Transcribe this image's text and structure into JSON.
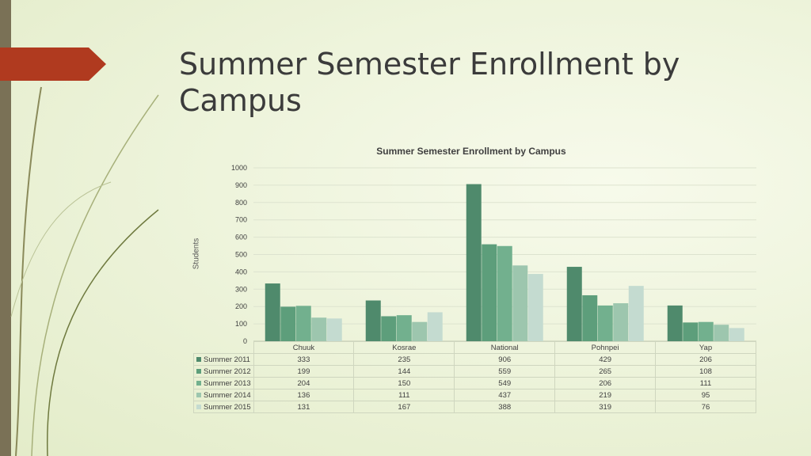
{
  "slide": {
    "title": "Summer Semester Enrollment by Campus"
  },
  "chart_data": {
    "type": "bar",
    "title": "Summer Semester Enrollment by Campus",
    "xlabel": "",
    "ylabel": "Students",
    "ylim": [
      0,
      1000
    ],
    "yticks": [
      0,
      100,
      200,
      300,
      400,
      500,
      600,
      700,
      800,
      900,
      1000
    ],
    "grid": true,
    "legend": "data-table",
    "categories": [
      "Chuuk",
      "Kosrae",
      "National",
      "Pohnpei",
      "Yap"
    ],
    "series": [
      {
        "name": "Summer 2011",
        "color": "#4f8a6c",
        "values": [
          333,
          235,
          906,
          429,
          206
        ]
      },
      {
        "name": "Summer 2012",
        "color": "#5d9e7b",
        "values": [
          199,
          144,
          559,
          265,
          108
        ]
      },
      {
        "name": "Summer 2013",
        "color": "#72b08e",
        "values": [
          204,
          150,
          549,
          206,
          111
        ]
      },
      {
        "name": "Summer 2014",
        "color": "#9dc6ae",
        "values": [
          136,
          111,
          437,
          219,
          95
        ]
      },
      {
        "name": "Summer 2015",
        "color": "#c4dbd0",
        "values": [
          131,
          167,
          388,
          319,
          76
        ]
      }
    ]
  }
}
